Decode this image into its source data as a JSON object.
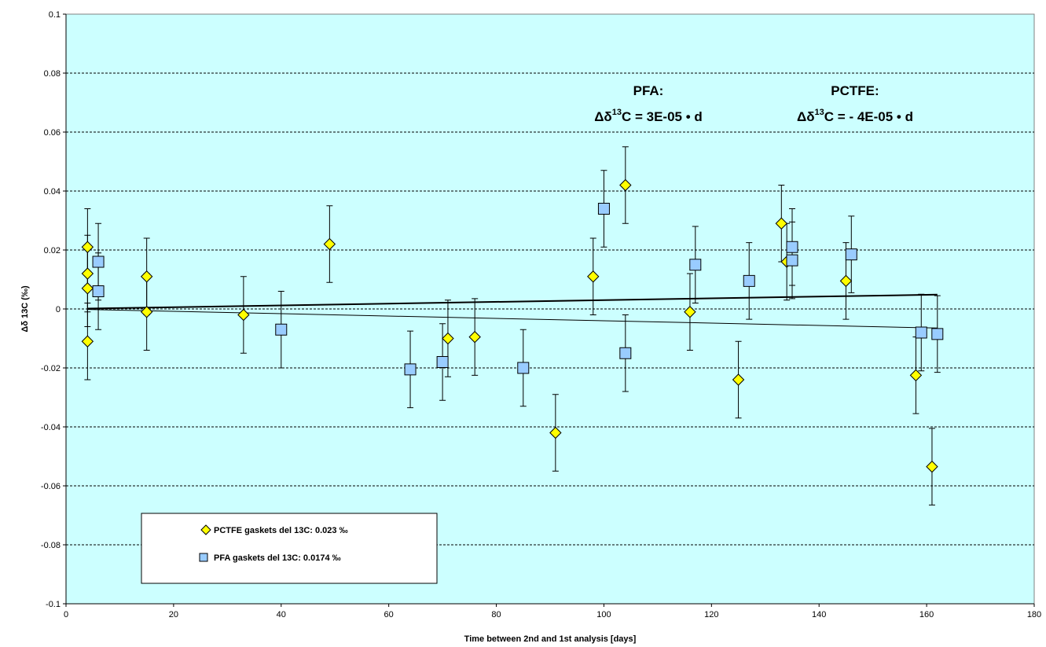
{
  "chart_data": {
    "type": "scatter",
    "title": "",
    "xlabel": "Time between 2nd and 1st analysis [days]",
    "ylabel": "Δδ 13C (‰)",
    "xlim": [
      0,
      180
    ],
    "ylim": [
      -0.1,
      0.1
    ],
    "x_ticks": [
      "0",
      "20",
      "40",
      "60",
      "80",
      "100",
      "120",
      "140",
      "160",
      "180"
    ],
    "y_ticks": [
      "-0.1",
      "-0.08",
      "-0.06",
      "-0.04",
      "-0.02",
      "0",
      "0.02",
      "0.04",
      "0.06",
      "0.08",
      "0.1"
    ],
    "grid": "horizontal dashed",
    "legend_position": "bottom-left",
    "colors": {
      "plot_background": "#ccffff",
      "pctfe_marker": "#ffff00",
      "pfa_marker": "#99ccff",
      "marker_edge": "#000000"
    },
    "error_bar": 0.013,
    "series": [
      {
        "name": "PCTFE gaskets del 13C:  0.023 ‰",
        "marker": "diamond",
        "points": [
          {
            "x": 4,
            "y": 0.021
          },
          {
            "x": 4,
            "y": 0.012
          },
          {
            "x": 4,
            "y": 0.007
          },
          {
            "x": 4,
            "y": -0.011
          },
          {
            "x": 15,
            "y": 0.011
          },
          {
            "x": 15,
            "y": -0.001
          },
          {
            "x": 33,
            "y": -0.002
          },
          {
            "x": 49,
            "y": 0.022
          },
          {
            "x": 71,
            "y": -0.01
          },
          {
            "x": 76,
            "y": -0.0095
          },
          {
            "x": 91,
            "y": -0.042
          },
          {
            "x": 98,
            "y": 0.011
          },
          {
            "x": 104,
            "y": 0.042
          },
          {
            "x": 116,
            "y": -0.001
          },
          {
            "x": 125,
            "y": -0.024
          },
          {
            "x": 133,
            "y": 0.029
          },
          {
            "x": 134,
            "y": 0.016
          },
          {
            "x": 145,
            "y": 0.0095
          },
          {
            "x": 158,
            "y": -0.0225
          },
          {
            "x": 161,
            "y": -0.0535
          }
        ],
        "trend": {
          "x": [
            4,
            162
          ],
          "y": [
            -0.00016,
            -0.00648
          ]
        }
      },
      {
        "name": "PFA gaskets del 13C:  0.0174 ‰",
        "marker": "square",
        "points": [
          {
            "x": 6,
            "y": 0.016
          },
          {
            "x": 6,
            "y": 0.006
          },
          {
            "x": 40,
            "y": -0.007
          },
          {
            "x": 64,
            "y": -0.0205
          },
          {
            "x": 70,
            "y": -0.018
          },
          {
            "x": 85,
            "y": -0.02
          },
          {
            "x": 100,
            "y": 0.034
          },
          {
            "x": 104,
            "y": -0.015
          },
          {
            "x": 117,
            "y": 0.015
          },
          {
            "x": 127,
            "y": 0.0095
          },
          {
            "x": 135,
            "y": 0.021
          },
          {
            "x": 135,
            "y": 0.0165
          },
          {
            "x": 146,
            "y": 0.0185
          },
          {
            "x": 159,
            "y": -0.008
          },
          {
            "x": 162,
            "y": -0.0085
          }
        ],
        "trend": {
          "x": [
            4,
            162
          ],
          "y": [
            0.00012,
            0.00486
          ]
        }
      }
    ],
    "annotations": [
      {
        "id": "pfa",
        "line1": "PFA:",
        "line2_pre": "Δδ",
        "line2_sup": "13",
        "line2_post": "C = 3E-05 • d"
      },
      {
        "id": "pctfe",
        "line1": "PCTFE:",
        "line2_pre": "Δδ",
        "line2_sup": "13",
        "line2_post": "C =  - 4E-05 • d"
      }
    ]
  }
}
